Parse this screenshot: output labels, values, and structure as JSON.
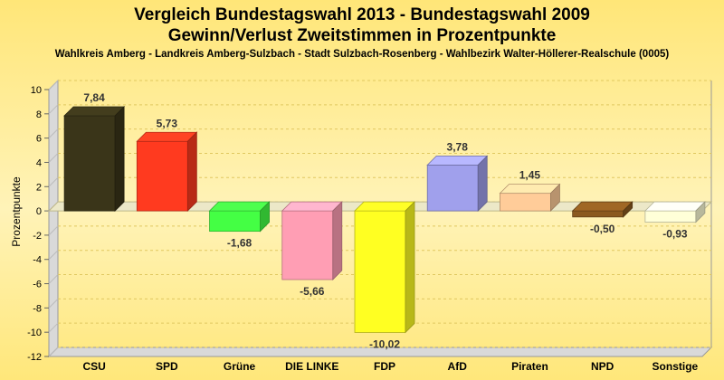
{
  "chart_data": {
    "type": "bar",
    "title": "Vergleich Bundestagswahl 2013 - Bundestagswahl 2009",
    "title2": "Gewinn/Verlust Zweitstimmen in Prozentpunkte",
    "subtitle": "Wahlkreis Amberg - Landkreis Amberg-Sulzbach - Stadt Sulzbach-Rosenberg - Wahlbezirk Walter-Höllerer-Realschule (0005)",
    "ylabel": "Prozentpunkte",
    "xlabel": "",
    "ylim": [
      -12,
      10
    ],
    "yticks": [
      "10",
      "8",
      "6",
      "4",
      "2",
      "0",
      "-2",
      "-4",
      "-6",
      "-8",
      "-10",
      "-12"
    ],
    "categories": [
      "CSU",
      "SPD",
      "Grüne",
      "DIE LINKE",
      "FDP",
      "AfD",
      "Piraten",
      "NPD",
      "Sonstige"
    ],
    "values": [
      7.84,
      5.73,
      -1.68,
      -5.66,
      -10.02,
      3.78,
      1.45,
      -0.5,
      -0.93
    ],
    "value_labels": [
      "7,84",
      "5,73",
      "-1,68",
      "-5,66",
      "-10,02",
      "3,78",
      "1,45",
      "-0,50",
      "-0,93"
    ],
    "colors": [
      "#3a3519",
      "#ff3a1f",
      "#44ff44",
      "#ff9eb4",
      "#ffff22",
      "#a0a0ec",
      "#ffcc99",
      "#8b5a20",
      "#ffffd8"
    ],
    "grid": true,
    "legend": "none"
  }
}
